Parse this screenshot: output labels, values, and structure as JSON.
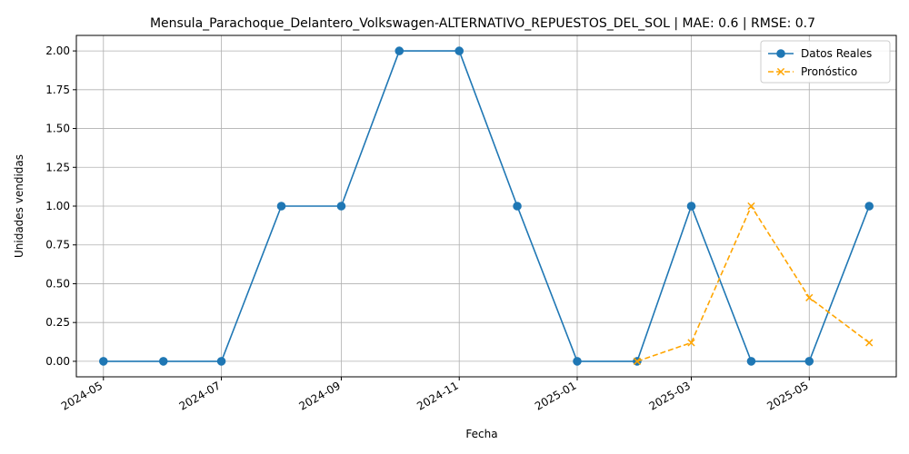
{
  "chart_data": {
    "type": "line",
    "title": "Mensula_Parachoque_Delantero_Volkswagen-ALTERNATIVO_REPUESTOS_DEL_SOL | MAE: 0.6 | RMSE: 0.7",
    "xlabel": "Fecha",
    "ylabel": "Unidades vendidas",
    "ylim": [
      -0.1,
      2.1
    ],
    "xlim": [
      "2024-04-17",
      "2025-06-15"
    ],
    "grid": true,
    "legend_position": "top-right",
    "x_ticks": [
      "2024-05",
      "2024-07",
      "2024-09",
      "2024-11",
      "2025-01",
      "2025-03",
      "2025-05"
    ],
    "y_ticks": [
      "0.00",
      "0.25",
      "0.50",
      "0.75",
      "1.00",
      "1.25",
      "1.50",
      "1.75",
      "2.00"
    ],
    "series": [
      {
        "name": "Datos Reales",
        "color": "#1f77b4",
        "marker": "circle",
        "line_style": "solid",
        "x": [
          "2024-05-01",
          "2024-06-01",
          "2024-07-01",
          "2024-08-01",
          "2024-09-01",
          "2024-10-01",
          "2024-11-01",
          "2024-12-01",
          "2025-01-01",
          "2025-02-01",
          "2025-03-01",
          "2025-04-01",
          "2025-05-01",
          "2025-06-01"
        ],
        "values": [
          0,
          0,
          0,
          1,
          1,
          2,
          2,
          1,
          0,
          0,
          1,
          0,
          0,
          1
        ]
      },
      {
        "name": "Pronóstico",
        "color": "#ffa500",
        "marker": "x",
        "line_style": "dashed",
        "x": [
          "2025-02-01",
          "2025-03-01",
          "2025-04-01",
          "2025-05-01",
          "2025-06-01"
        ],
        "values": [
          0,
          0.12,
          1.0,
          0.41,
          0.12
        ]
      }
    ]
  }
}
